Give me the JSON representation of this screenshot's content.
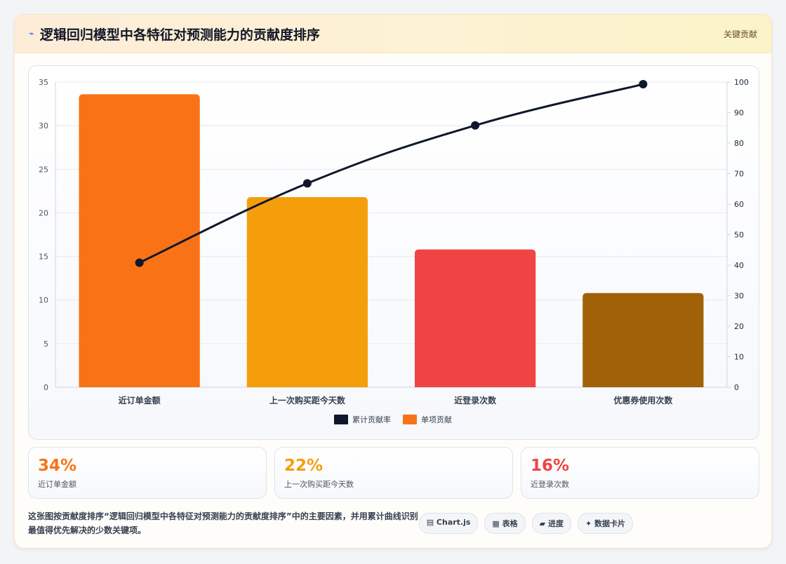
{
  "header": {
    "icon": "lightning-icon",
    "title": "逻辑回归模型中各特征对预测能力的贡献度排序",
    "tag": "关键贡献"
  },
  "chart_data": {
    "type": "bar",
    "categories": [
      "近订单金额",
      "上一次购买距今天数",
      "近登录次数",
      "优惠券使用次数"
    ],
    "series": [
      {
        "name": "单项贡献",
        "type": "bar",
        "axis": "left",
        "values": [
          33.6,
          21.8,
          15.8,
          10.8
        ],
        "colors": [
          "#f97316",
          "#f59e0b",
          "#ef4444",
          "#a16207"
        ]
      },
      {
        "name": "累计贡献率",
        "type": "line",
        "axis": "right",
        "values": [
          40.8,
          66.8,
          85.8,
          99.3
        ],
        "color": "#0f172a"
      }
    ],
    "y_left": {
      "ylim": [
        0,
        35
      ],
      "ticks": [
        0,
        5,
        10,
        15,
        20,
        25,
        30,
        35
      ]
    },
    "y_right": {
      "ylim": [
        0,
        100
      ],
      "ticks": [
        0,
        10,
        20,
        30,
        40,
        50,
        60,
        70,
        80,
        90,
        100
      ]
    },
    "legend": {
      "position": "bottom",
      "entries": [
        {
          "label": "累计贡献率",
          "color": "#0f172a"
        },
        {
          "label": "单项贡献",
          "color": "#f97316"
        }
      ]
    },
    "grid": true
  },
  "stats": [
    {
      "value": "34%",
      "label": "近订单金额",
      "color": "#f97316"
    },
    {
      "value": "22%",
      "label": "上一次购买距今天数",
      "color": "#f59e0b"
    },
    {
      "value": "16%",
      "label": "近登录次数",
      "color": "#ef4444"
    }
  ],
  "footer": {
    "description": "这张图按贡献度排序“逻辑回归模型中各特征对预测能力的贡献度排序”中的主要因素，并用累计曲线识别最值得优先解决的少数关键项。",
    "pills": [
      "▤ Chart.js",
      "▦ 表格",
      "▰ 进度",
      "✦ 数据卡片"
    ]
  }
}
